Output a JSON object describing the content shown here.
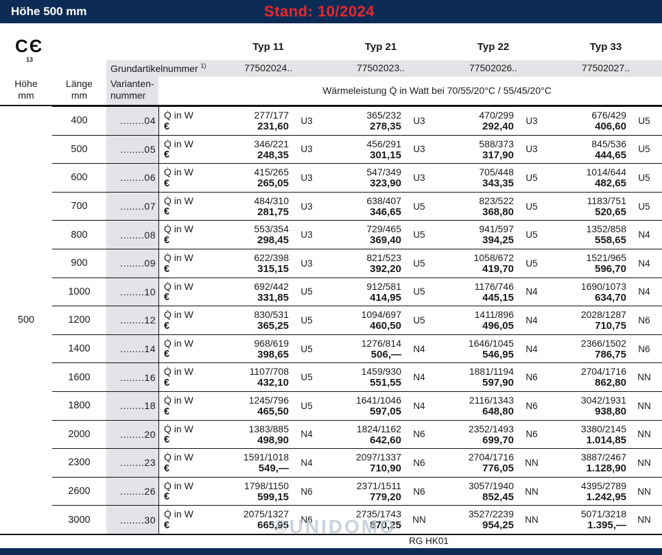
{
  "colors": {
    "bar_navy": "#0d2c55",
    "stand_red": "#e8262a",
    "band_gray": "#e4e4e8"
  },
  "topbar": {
    "title": "Höhe 500 mm",
    "stand": "Stand: 10/2024"
  },
  "ce_mark": {
    "glyph": "CЄ",
    "number": "13"
  },
  "header": {
    "types": [
      "Typ 11",
      "Typ 21",
      "Typ 22",
      "Typ 33"
    ],
    "grundartikel_label": "Grundartikelnummer",
    "grundartikel_footnote": "1)",
    "grundartikel_numbers": [
      "77502024..",
      "77502023..",
      "77502026..",
      "77502027.."
    ],
    "col_hoehe_line1": "Höhe",
    "col_hoehe_line2": "mm",
    "col_laenge_line1": "Länge",
    "col_laenge_line2": "mm",
    "col_variant_line1": "Varianten-",
    "col_variant_line2": "nummer",
    "leistung_label": "Wärmeleistung Q̇ in Watt bei 70/55/20°C / 55/45/20°C"
  },
  "labels": {
    "q": "Q̇ in W",
    "euro": "€"
  },
  "hoehe_value": "500",
  "table": {
    "rows": [
      {
        "laenge": "400",
        "variante": "........04",
        "cells": [
          {
            "watt": "277/177",
            "price": "231,60",
            "code": "U3"
          },
          {
            "watt": "365/232",
            "price": "278,35",
            "code": "U3"
          },
          {
            "watt": "470/299",
            "price": "292,40",
            "code": "U3"
          },
          {
            "watt": "676/429",
            "price": "406,60",
            "code": "U5"
          }
        ]
      },
      {
        "laenge": "500",
        "variante": "........05",
        "cells": [
          {
            "watt": "346/221",
            "price": "248,35",
            "code": "U3"
          },
          {
            "watt": "456/291",
            "price": "301,15",
            "code": "U3"
          },
          {
            "watt": "588/373",
            "price": "317,90",
            "code": "U3"
          },
          {
            "watt": "845/536",
            "price": "444,65",
            "code": "U5"
          }
        ]
      },
      {
        "laenge": "600",
        "variante": "........06",
        "cells": [
          {
            "watt": "415/265",
            "price": "265,05",
            "code": "U3"
          },
          {
            "watt": "547/349",
            "price": "323,90",
            "code": "U3"
          },
          {
            "watt": "705/448",
            "price": "343,35",
            "code": "U5"
          },
          {
            "watt": "1014/644",
            "price": "482,65",
            "code": "U5"
          }
        ]
      },
      {
        "laenge": "700",
        "variante": "........07",
        "cells": [
          {
            "watt": "484/310",
            "price": "281,75",
            "code": "U3"
          },
          {
            "watt": "638/407",
            "price": "346,65",
            "code": "U5"
          },
          {
            "watt": "823/522",
            "price": "368,80",
            "code": "U5"
          },
          {
            "watt": "1183/751",
            "price": "520,65",
            "code": "U5"
          }
        ]
      },
      {
        "laenge": "800",
        "variante": "........08",
        "cells": [
          {
            "watt": "553/354",
            "price": "298,45",
            "code": "U3"
          },
          {
            "watt": "729/465",
            "price": "369,40",
            "code": "U5"
          },
          {
            "watt": "941/597",
            "price": "394,25",
            "code": "U5"
          },
          {
            "watt": "1352/858",
            "price": "558,65",
            "code": "N4"
          }
        ]
      },
      {
        "laenge": "900",
        "variante": "........09",
        "cells": [
          {
            "watt": "622/398",
            "price": "315,15",
            "code": "U3"
          },
          {
            "watt": "821/523",
            "price": "392,20",
            "code": "U5"
          },
          {
            "watt": "1058/672",
            "price": "419,70",
            "code": "U5"
          },
          {
            "watt": "1521/965",
            "price": "596,70",
            "code": "N4"
          }
        ]
      },
      {
        "laenge": "1000",
        "variante": "........10",
        "cells": [
          {
            "watt": "692/442",
            "price": "331,85",
            "code": "U5"
          },
          {
            "watt": "912/581",
            "price": "414,95",
            "code": "U5"
          },
          {
            "watt": "1176/746",
            "price": "445,15",
            "code": "N4"
          },
          {
            "watt": "1690/1073",
            "price": "634,70",
            "code": "N4"
          }
        ]
      },
      {
        "laenge": "1200",
        "variante": "........12",
        "cells": [
          {
            "watt": "830/531",
            "price": "365,25",
            "code": "U5"
          },
          {
            "watt": "1094/697",
            "price": "460,50",
            "code": "U5"
          },
          {
            "watt": "1411/896",
            "price": "496,05",
            "code": "N4"
          },
          {
            "watt": "2028/1287",
            "price": "710,75",
            "code": "N6"
          }
        ]
      },
      {
        "laenge": "1400",
        "variante": "........14",
        "cells": [
          {
            "watt": "968/619",
            "price": "398,65",
            "code": "U5"
          },
          {
            "watt": "1276/814",
            "price": "506,—",
            "code": "N4"
          },
          {
            "watt": "1646/1045",
            "price": "546,95",
            "code": "N4"
          },
          {
            "watt": "2366/1502",
            "price": "786,75",
            "code": "N6"
          }
        ]
      },
      {
        "laenge": "1600",
        "variante": "........16",
        "cells": [
          {
            "watt": "1107/708",
            "price": "432,10",
            "code": "U5"
          },
          {
            "watt": "1459/930",
            "price": "551,55",
            "code": "N4"
          },
          {
            "watt": "1881/1194",
            "price": "597,90",
            "code": "N6"
          },
          {
            "watt": "2704/1716",
            "price": "862,80",
            "code": "NN"
          }
        ]
      },
      {
        "laenge": "1800",
        "variante": "........18",
        "cells": [
          {
            "watt": "1245/796",
            "price": "465,50",
            "code": "U5"
          },
          {
            "watt": "1641/1046",
            "price": "597,05",
            "code": "N4"
          },
          {
            "watt": "2116/1343",
            "price": "648,80",
            "code": "N6"
          },
          {
            "watt": "3042/1931",
            "price": "938,80",
            "code": "NN"
          }
        ]
      },
      {
        "laenge": "2000",
        "variante": "........20",
        "cells": [
          {
            "watt": "1383/885",
            "price": "498,90",
            "code": "N4"
          },
          {
            "watt": "1824/1162",
            "price": "642,60",
            "code": "N6"
          },
          {
            "watt": "2352/1493",
            "price": "699,70",
            "code": "N6"
          },
          {
            "watt": "3380/2145",
            "price": "1.014,85",
            "code": "NN"
          }
        ]
      },
      {
        "laenge": "2300",
        "variante": "........23",
        "cells": [
          {
            "watt": "1591/1018",
            "price": "549,—",
            "code": "N4"
          },
          {
            "watt": "2097/1337",
            "price": "710,90",
            "code": "N6"
          },
          {
            "watt": "2704/1716",
            "price": "776,05",
            "code": "NN"
          },
          {
            "watt": "3887/2467",
            "price": "1.128,90",
            "code": "NN"
          }
        ]
      },
      {
        "laenge": "2600",
        "variante": "........26",
        "cells": [
          {
            "watt": "1798/1150",
            "price": "599,15",
            "code": "N6"
          },
          {
            "watt": "2371/1511",
            "price": "779,20",
            "code": "N6"
          },
          {
            "watt": "3057/1940",
            "price": "852,45",
            "code": "NN"
          },
          {
            "watt": "4395/2789",
            "price": "1.242,95",
            "code": "NN"
          }
        ]
      },
      {
        "laenge": "3000",
        "variante": "........30",
        "cells": [
          {
            "watt": "2075/1327",
            "price": "665,95",
            "code": "N6"
          },
          {
            "watt": "2735/1743",
            "price": "870,25",
            "code": "NN"
          },
          {
            "watt": "3527/2239",
            "price": "954,25",
            "code": "NN"
          },
          {
            "watt": "5071/3218",
            "price": "1.395,—",
            "code": "NN"
          }
        ]
      }
    ]
  },
  "footer": {
    "code": "RG HK01"
  },
  "watermark": "©UNIDOMO"
}
